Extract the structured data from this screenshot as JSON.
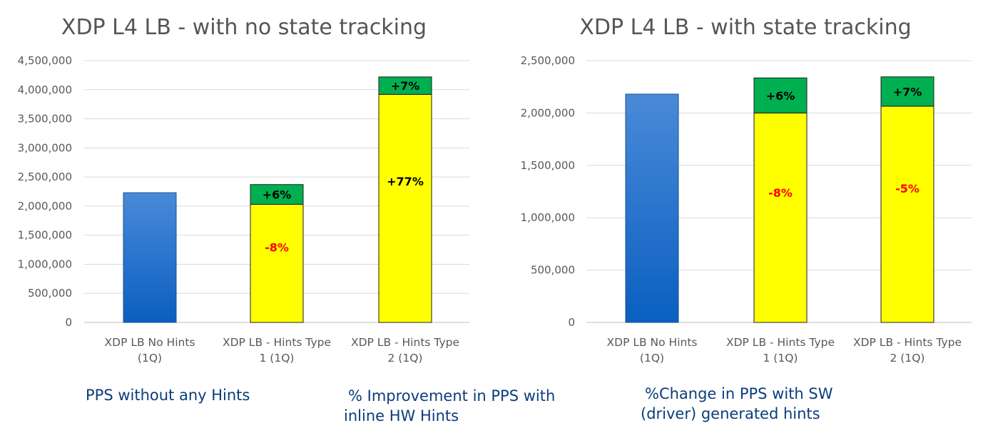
{
  "chart_data": [
    {
      "type": "bar",
      "stacked": true,
      "title": "XDP L4 LB - with no state tracking",
      "categories": [
        [
          "XDP LB No Hints",
          "(1Q)"
        ],
        [
          "XDP LB - Hints Type",
          "1 (1Q)"
        ],
        [
          "XDP LB - Hints Type",
          "2 (1Q)"
        ]
      ],
      "ylim": [
        0,
        4500000
      ],
      "yticks": [
        0,
        500000,
        1000000,
        1500000,
        2000000,
        2500000,
        3000000,
        3500000,
        4000000,
        4500000
      ],
      "ytick_labels": [
        "0",
        "500,000",
        "1,000,000",
        "1,500,000",
        "2,000,000",
        "2,500,000",
        "3,000,000",
        "3,500,000",
        "4,000,000",
        "4,500,000"
      ],
      "grid": true,
      "bars": [
        {
          "segments": [
            {
              "value": 2230000,
              "color": "#1a6fd0",
              "label": ""
            }
          ]
        },
        {
          "segments": [
            {
              "value": 2030000,
              "color": "#ffff00",
              "label": "-8%",
              "label_color": "#ff0000"
            },
            {
              "value": 340000,
              "color": "#00b050",
              "label": "+6%",
              "label_color": "#000000"
            }
          ]
        },
        {
          "segments": [
            {
              "value": 3920000,
              "color": "#ffff00",
              "label": "+77%",
              "label_color": "#000000"
            },
            {
              "value": 300000,
              "color": "#00b050",
              "label": "+7%",
              "label_color": "#000000"
            }
          ]
        }
      ]
    },
    {
      "type": "bar",
      "stacked": true,
      "title": "XDP L4 LB - with state tracking",
      "categories": [
        [
          "XDP LB No Hints",
          "(1Q)"
        ],
        [
          "XDP LB - Hints Type",
          "1 (1Q)"
        ],
        [
          "XDP LB - Hints Type",
          "2 (1Q)"
        ]
      ],
      "ylim": [
        0,
        2500000
      ],
      "yticks": [
        0,
        500000,
        1000000,
        1500000,
        2000000,
        2500000
      ],
      "ytick_labels": [
        "0",
        "500,000",
        "1,000,000",
        "1,500,000",
        "2,000,000",
        "2,500,000"
      ],
      "grid": true,
      "bars": [
        {
          "segments": [
            {
              "value": 2180000,
              "color": "#1a6fd0",
              "label": ""
            }
          ]
        },
        {
          "segments": [
            {
              "value": 2000000,
              "color": "#ffff00",
              "label": "-8%",
              "label_color": "#ff0000"
            },
            {
              "value": 335000,
              "color": "#00b050",
              "label": "+6%",
              "label_color": "#000000"
            }
          ]
        },
        {
          "segments": [
            {
              "value": 2065000,
              "color": "#ffff00",
              "label": "-5%",
              "label_color": "#ff0000"
            },
            {
              "value": 280000,
              "color": "#00b050",
              "label": "+7%",
              "label_color": "#000000"
            }
          ]
        }
      ]
    }
  ],
  "legend": {
    "blue": "PPS without any Hints",
    "green": [
      "% Improvement in PPS with",
      "inline HW Hints"
    ],
    "yellow": [
      "%Change in PPS with SW",
      "(driver) generated hints"
    ]
  }
}
